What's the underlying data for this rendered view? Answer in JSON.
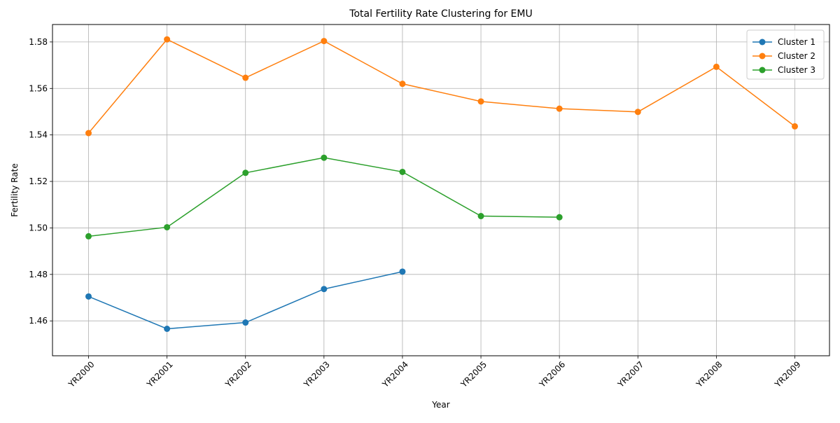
{
  "chart_data": {
    "type": "line",
    "title": "Total Fertility Rate Clustering for EMU",
    "xlabel": "Year",
    "ylabel": "Fertility Rate",
    "categories": [
      "YR2000",
      "YR2001",
      "YR2002",
      "YR2003",
      "YR2004",
      "YR2005",
      "YR2006",
      "YR2007",
      "YR2008",
      "YR2009"
    ],
    "ylim": [
      1.445,
      1.5875
    ],
    "yticks": [
      1.46,
      1.48,
      1.5,
      1.52,
      1.54,
      1.56,
      1.58
    ],
    "ytick_labels": [
      "1.46",
      "1.48",
      "1.50",
      "1.52",
      "1.54",
      "1.56",
      "1.58"
    ],
    "grid": true,
    "legend_position": "top-right",
    "series": [
      {
        "name": "Cluster 1",
        "color": "#1f77b4",
        "values": [
          1.4705,
          1.4566,
          1.4593,
          1.4737,
          1.4812,
          null,
          null,
          null,
          null,
          null
        ]
      },
      {
        "name": "Cluster 2",
        "color": "#ff7f0e",
        "values": [
          1.5408,
          1.5811,
          1.5646,
          1.5804,
          1.562,
          1.5544,
          1.5513,
          1.5499,
          1.5693,
          1.5437
        ]
      },
      {
        "name": "Cluster 3",
        "color": "#2ca02c",
        "values": [
          1.4964,
          1.5003,
          1.5237,
          1.5302,
          1.5241,
          1.5051,
          1.5046,
          null,
          null,
          null
        ]
      }
    ]
  }
}
